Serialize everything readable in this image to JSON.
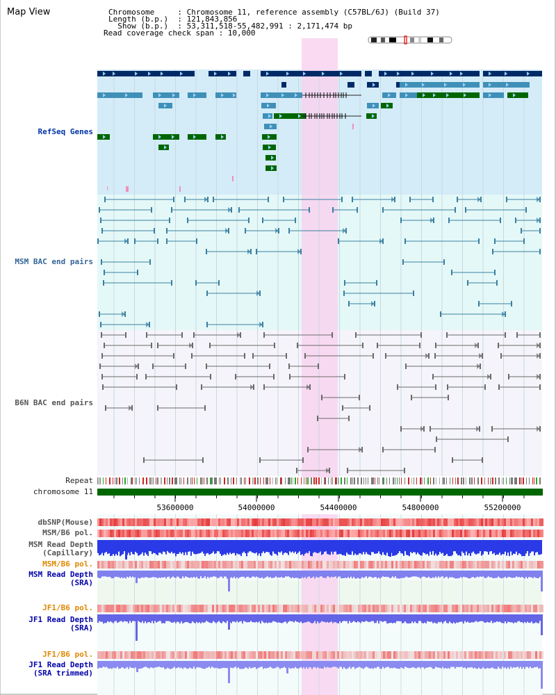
{
  "header": {
    "title": "Map View",
    "lines": [
      "Chromosome     : Chromosome 11, reference assembly (C57BL/6J) (Build 37)",
      "Length (b.p.)  : 121,843,856",
      "  Show (b.p.)  : 53,311,518-55,482,991 : 2,171,474 bp",
      "Read coverage check span : 10,000"
    ]
  },
  "tracks": {
    "refseq": "RefSeq Genes",
    "msm_bac": "MSM BAC end pairs",
    "b6n_bac": "B6N BAC end pairs",
    "repeat": "Repeat",
    "chromosome": "chromosome 11",
    "dbsnp": "dbSNP(Mouse)",
    "msm_b6_pol_1": "MSM/B6 pol.",
    "msm_depth_cap_1": "MSM Read Depth",
    "msm_depth_cap_2": "(Capillary)",
    "msm_b6_pol_2": "MSM/B6 pol.",
    "msm_depth_sra_1": "MSM Read Depth",
    "msm_depth_sra_2": "(SRA)",
    "jf1_b6_pol_1": "JF1/B6 pol.",
    "jf1_depth_sra_1": "JF1 Read Depth",
    "jf1_depth_sra_2": "(SRA)",
    "jf1_b6_pol_2": "JF1/B6 pol.",
    "jf1_depth_trim_1": "JF1 Read Depth",
    "jf1_depth_trim_2": "(SRA trimmed)"
  },
  "axis": {
    "ticks": [
      "53600000",
      "54000000",
      "54400000",
      "54800000",
      "55200000"
    ]
  },
  "colors": {
    "highlight": "#f8d4f0",
    "refseq_bg": "#d4ecf8",
    "msm_bg": "#e4f8f8",
    "b6n_bg": "#f4f4fa",
    "gene_dark": "#002a66",
    "gene_mid": "#3f90b8",
    "gene_green": "#006600",
    "chromosome": "#006600"
  }
}
